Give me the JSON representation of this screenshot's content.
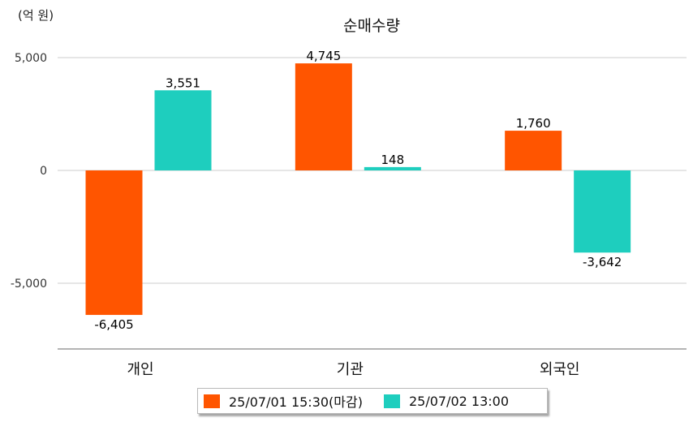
{
  "chart_data": {
    "type": "bar",
    "title": "순매수량",
    "unit_label": "(억 원)",
    "categories": [
      "개인",
      "기관",
      "외국인"
    ],
    "series": [
      {
        "name": "25/07/01 15:30(마감)",
        "values": [
          -6405,
          4745,
          1760
        ],
        "labels": [
          "-6,405",
          "4,745",
          "1,760"
        ],
        "color": "#ff5500"
      },
      {
        "name": "25/07/02 13:00",
        "values": [
          3551,
          148,
          -3642
        ],
        "labels": [
          "3,551",
          "148",
          "-3,642"
        ],
        "color": "#1ecebe"
      }
    ],
    "y_ticks": [
      5000,
      0,
      -5000
    ],
    "y_tick_labels": [
      "5,000",
      "0",
      "-5,000"
    ],
    "ylim": [
      -7900,
      5000
    ],
    "grid": true,
    "legend_position": "bottom"
  }
}
